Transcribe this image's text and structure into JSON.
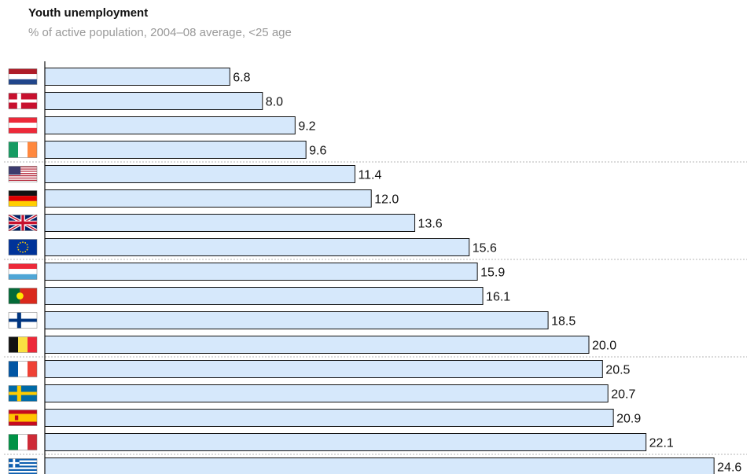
{
  "chart_data": {
    "type": "bar",
    "orientation": "horizontal",
    "title": "Youth unemployment",
    "subtitle": "% of active population, 2004–08 average, <25 age",
    "categories": [
      "Netherlands",
      "Denmark",
      "Austria",
      "Ireland",
      "United States",
      "Germany",
      "United Kingdom",
      "European Union",
      "Luxembourg",
      "Portugal",
      "Finland",
      "Belgium",
      "France",
      "Sweden",
      "Spain",
      "Italy",
      "Greece"
    ],
    "values": [
      6.8,
      8.0,
      9.2,
      9.6,
      11.4,
      12.0,
      13.6,
      15.6,
      15.9,
      16.1,
      18.5,
      20.0,
      20.5,
      20.7,
      20.9,
      22.1,
      24.6
    ],
    "value_labels": [
      "6.8",
      "8.0",
      "9.2",
      "9.6",
      "11.4",
      "12.0",
      "13.6",
      "15.6",
      "15.9",
      "16.1",
      "18.5",
      "20.0",
      "20.5",
      "20.7",
      "20.9",
      "22.1",
      "24.6"
    ],
    "category_icons": [
      "netherlands-flag-icon",
      "denmark-flag-icon",
      "austria-flag-icon",
      "ireland-flag-icon",
      "usa-flag-icon",
      "germany-flag-icon",
      "uk-flag-icon",
      "eu-flag-icon",
      "luxembourg-flag-icon",
      "portugal-flag-icon",
      "finland-flag-icon",
      "belgium-flag-icon",
      "france-flag-icon",
      "sweden-flag-icon",
      "spain-flag-icon",
      "italy-flag-icon",
      "greece-flag-icon"
    ],
    "xlim": [
      0,
      25.5
    ],
    "group_separators_after": [
      3,
      7,
      11,
      15
    ],
    "bar_color": "#d6e8fb",
    "bar_border_color": "#111111",
    "separator_color": "#b5b5b5"
  }
}
